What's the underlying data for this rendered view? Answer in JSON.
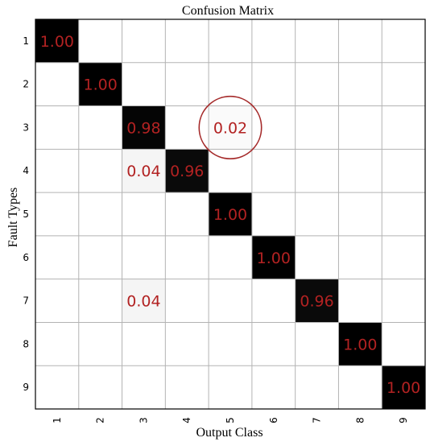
{
  "chart_data": {
    "type": "heatmap",
    "title": "Confusion Matrix",
    "xlabel": "Output Class",
    "ylabel": "Fault Types",
    "x_categories": [
      "1",
      "2",
      "3",
      "4",
      "5",
      "6",
      "7",
      "8",
      "9"
    ],
    "y_categories": [
      "1",
      "2",
      "3",
      "4",
      "5",
      "6",
      "7",
      "8",
      "9"
    ],
    "matrix": [
      [
        1.0,
        0,
        0,
        0,
        0,
        0,
        0,
        0,
        0
      ],
      [
        0,
        1.0,
        0,
        0,
        0,
        0,
        0,
        0,
        0
      ],
      [
        0,
        0,
        0.98,
        0,
        0.02,
        0,
        0,
        0,
        0
      ],
      [
        0,
        0,
        0.04,
        0.96,
        0,
        0,
        0,
        0,
        0
      ],
      [
        0,
        0,
        0,
        0,
        1.0,
        0,
        0,
        0,
        0
      ],
      [
        0,
        0,
        0,
        0,
        0,
        1.0,
        0,
        0,
        0
      ],
      [
        0,
        0,
        0.04,
        0,
        0,
        0,
        0.96,
        0,
        0
      ],
      [
        0,
        0,
        0,
        0,
        0,
        0,
        0,
        1.0,
        0
      ],
      [
        0,
        0,
        0,
        0,
        0,
        0,
        0,
        0,
        1.0
      ]
    ],
    "cell_labels": [
      {
        "row": 0,
        "col": 0,
        "text": "1.00"
      },
      {
        "row": 1,
        "col": 1,
        "text": "1.00"
      },
      {
        "row": 2,
        "col": 2,
        "text": "0.98"
      },
      {
        "row": 2,
        "col": 4,
        "text": "0.02"
      },
      {
        "row": 3,
        "col": 2,
        "text": "0.04"
      },
      {
        "row": 3,
        "col": 3,
        "text": "0.96"
      },
      {
        "row": 4,
        "col": 4,
        "text": "1.00"
      },
      {
        "row": 5,
        "col": 5,
        "text": "1.00"
      },
      {
        "row": 6,
        "col": 2,
        "text": "0.04"
      },
      {
        "row": 6,
        "col": 6,
        "text": "0.96"
      },
      {
        "row": 7,
        "col": 7,
        "text": "1.00"
      },
      {
        "row": 8,
        "col": 8,
        "text": "1.00"
      }
    ],
    "highlight": {
      "row": 2,
      "col": 4,
      "shape": "circle",
      "color": "#a52a2a"
    },
    "colormap": {
      "low": "#ffffff",
      "high": "#000000"
    },
    "label_color": "#b22222",
    "grid": true,
    "grid_color": "#b3b3b3",
    "xtick_rotation": "vertical"
  }
}
